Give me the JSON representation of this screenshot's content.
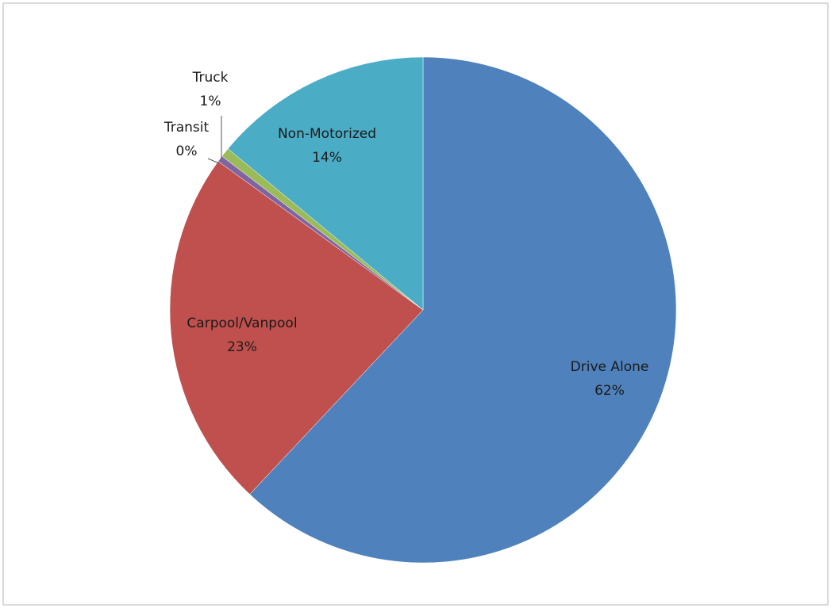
{
  "chart_data": {
    "type": "pie",
    "categories": [
      "Drive Alone",
      "Carpool/Vanpool",
      "Transit",
      "Truck",
      "Non-Motorized"
    ],
    "values": [
      62,
      23,
      0.4,
      0.6,
      14
    ],
    "value_labels": [
      "62%",
      "23%",
      "0%",
      "1%",
      "14%"
    ],
    "colors": [
      "#4f81bd",
      "#c0504d",
      "#8064a2",
      "#9bbb59",
      "#4bacc6"
    ]
  }
}
